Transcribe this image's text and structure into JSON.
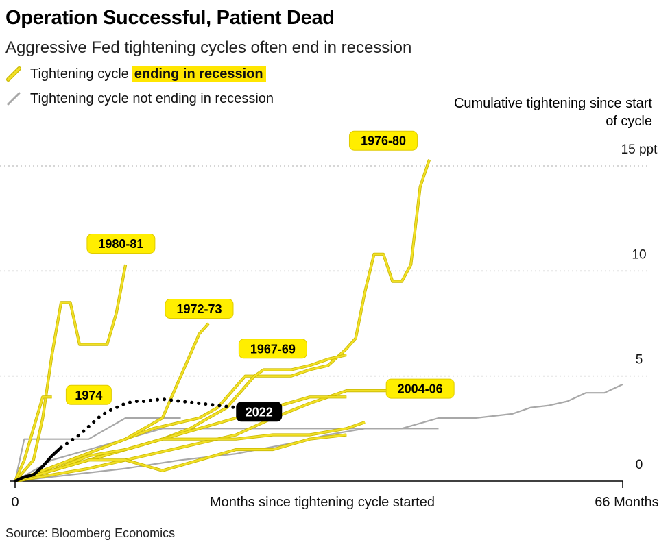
{
  "header": {
    "title": "Operation Successful, Patient Dead",
    "subtitle": "Aggressive Fed tightening cycles often end in recession"
  },
  "legend": {
    "recession_prefix": "Tightening cycle",
    "recession_highlight": "ending in recession",
    "no_recession": "Tightening cycle not ending in recession"
  },
  "footer": {
    "source": "Source: Bloomberg Economics"
  },
  "colors": {
    "recession": "#f2e026",
    "recession_outline": "#c9b800",
    "no_recession": "#a8a8a8",
    "current": "#000000",
    "label_bg": "#ffee00"
  },
  "chart_data": {
    "type": "line",
    "ylabel": "Cumulative tightening since start of cycle",
    "xlabel": "Months since tightening cycle started",
    "xlim": [
      0,
      66
    ],
    "ylim": [
      0,
      15
    ],
    "x_ticks": [
      {
        "value": 0,
        "label": "0"
      },
      {
        "value": 66,
        "label": "66 Months"
      }
    ],
    "y_ticks": [
      {
        "value": 0,
        "label": "0"
      },
      {
        "value": 5,
        "label": "5"
      },
      {
        "value": 10,
        "label": "10"
      },
      {
        "value": 15,
        "label": "15 ppt"
      }
    ],
    "grid": "horizontal-dotted",
    "series": [
      {
        "name": "1976-80",
        "recession": true,
        "label_at": [
          40,
          16.2
        ],
        "points": [
          [
            0,
            0
          ],
          [
            3,
            0.5
          ],
          [
            6,
            1
          ],
          [
            9,
            1.5
          ],
          [
            12,
            2
          ],
          [
            15,
            2.5
          ],
          [
            18,
            2.8
          ],
          [
            20,
            3
          ],
          [
            22,
            3.5
          ],
          [
            24,
            4.5
          ],
          [
            25,
            5
          ],
          [
            28,
            5
          ],
          [
            30,
            5
          ],
          [
            32,
            5.3
          ],
          [
            34,
            5.5
          ],
          [
            36,
            6.3
          ],
          [
            37,
            6.8
          ],
          [
            38,
            9
          ],
          [
            39,
            10.8
          ],
          [
            40,
            10.8
          ],
          [
            41,
            9.5
          ],
          [
            42,
            9.5
          ],
          [
            43,
            10.3
          ],
          [
            44,
            14
          ],
          [
            45,
            15.3
          ]
        ]
      },
      {
        "name": "1980-81",
        "recession": true,
        "label_at": [
          11.5,
          11.3
        ],
        "points": [
          [
            0,
            0
          ],
          [
            2,
            1
          ],
          [
            3,
            3
          ],
          [
            4,
            6
          ],
          [
            5,
            8.5
          ],
          [
            6,
            8.5
          ],
          [
            7,
            6.5
          ],
          [
            8,
            6.5
          ],
          [
            9,
            6.5
          ],
          [
            10,
            6.5
          ],
          [
            11,
            8
          ],
          [
            12,
            10.3
          ]
        ]
      },
      {
        "name": "1972-73",
        "recession": true,
        "label_at": [
          20,
          8.2
        ],
        "points": [
          [
            0,
            0
          ],
          [
            3,
            0.5
          ],
          [
            6,
            1
          ],
          [
            9,
            1.5
          ],
          [
            12,
            2
          ],
          [
            14,
            2.5
          ],
          [
            16,
            3
          ],
          [
            17,
            4
          ],
          [
            18,
            5
          ],
          [
            19,
            6
          ],
          [
            20,
            7
          ],
          [
            21,
            7.5
          ]
        ]
      },
      {
        "name": "1967-69",
        "recession": true,
        "label_at": [
          28,
          6.3
        ],
        "points": [
          [
            0,
            0
          ],
          [
            4,
            0.5
          ],
          [
            8,
            1
          ],
          [
            12,
            1.5
          ],
          [
            16,
            2
          ],
          [
            19,
            2.5
          ],
          [
            21,
            3
          ],
          [
            23,
            3.5
          ],
          [
            25,
            4.5
          ],
          [
            26,
            5
          ],
          [
            27,
            5.3
          ],
          [
            28,
            5.3
          ],
          [
            30,
            5.3
          ],
          [
            32,
            5.5
          ],
          [
            34,
            5.8
          ],
          [
            36,
            6
          ]
        ]
      },
      {
        "name": "2004-06",
        "recession": true,
        "label_at": [
          44,
          4.4
        ],
        "points": [
          [
            0,
            0
          ],
          [
            4,
            0.3
          ],
          [
            8,
            0.6
          ],
          [
            12,
            1
          ],
          [
            16,
            1.4
          ],
          [
            20,
            1.8
          ],
          [
            24,
            2.2
          ],
          [
            28,
            3
          ],
          [
            32,
            3.7
          ],
          [
            36,
            4.3
          ],
          [
            40,
            4.3
          ],
          [
            44,
            4.3
          ]
        ]
      },
      {
        "name": "1974",
        "recession": true,
        "label_at": [
          8,
          4.1
        ],
        "points": [
          [
            0,
            0
          ],
          [
            1,
            1
          ],
          [
            2,
            2.5
          ],
          [
            3,
            4
          ],
          [
            4,
            4
          ]
        ]
      },
      {
        "recession": true,
        "points": [
          [
            0,
            0
          ],
          [
            4,
            0.5
          ],
          [
            8,
            1
          ],
          [
            12,
            1.5
          ],
          [
            16,
            2
          ],
          [
            20,
            2.5
          ],
          [
            24,
            3
          ],
          [
            28,
            3.5
          ],
          [
            32,
            4
          ],
          [
            36,
            4
          ]
        ]
      },
      {
        "recession": true,
        "points": [
          [
            0,
            0
          ],
          [
            4,
            0.5
          ],
          [
            8,
            1.2
          ],
          [
            12,
            1.5
          ],
          [
            16,
            2
          ],
          [
            20,
            2
          ],
          [
            24,
            2
          ],
          [
            28,
            2.2
          ],
          [
            32,
            2.2
          ],
          [
            36,
            2.5
          ],
          [
            38,
            2.8
          ]
        ]
      },
      {
        "recession": true,
        "points": [
          [
            0,
            0
          ],
          [
            4,
            0.5
          ],
          [
            8,
            1
          ],
          [
            12,
            1
          ],
          [
            16,
            0.5
          ],
          [
            20,
            1
          ],
          [
            24,
            1.5
          ],
          [
            28,
            1.5
          ],
          [
            32,
            2
          ],
          [
            36,
            2.2
          ]
        ]
      },
      {
        "recession": false,
        "points": [
          [
            0,
            0
          ],
          [
            1,
            2
          ],
          [
            2,
            2
          ],
          [
            4,
            2
          ],
          [
            6,
            2
          ],
          [
            8,
            2
          ],
          [
            10,
            2.5
          ],
          [
            12,
            3
          ],
          [
            14,
            3
          ],
          [
            16,
            3
          ],
          [
            18,
            3
          ]
        ]
      },
      {
        "recession": false,
        "points": [
          [
            0,
            0
          ],
          [
            4,
            1
          ],
          [
            8,
            1.5
          ],
          [
            12,
            2
          ],
          [
            16,
            2.5
          ],
          [
            20,
            2.5
          ],
          [
            24,
            2.5
          ],
          [
            28,
            2.5
          ],
          [
            32,
            2.5
          ],
          [
            36,
            2.5
          ],
          [
            40,
            2.5
          ],
          [
            44,
            2.5
          ],
          [
            46,
            2.5
          ]
        ]
      },
      {
        "recession": false,
        "points": [
          [
            0,
            0
          ],
          [
            6,
            0.3
          ],
          [
            12,
            0.6
          ],
          [
            18,
            1
          ],
          [
            24,
            1.3
          ],
          [
            30,
            1.8
          ],
          [
            34,
            2.2
          ],
          [
            38,
            2.5
          ],
          [
            42,
            2.5
          ],
          [
            46,
            3
          ],
          [
            50,
            3
          ],
          [
            54,
            3.2
          ],
          [
            56,
            3.5
          ],
          [
            58,
            3.6
          ],
          [
            60,
            3.8
          ],
          [
            62,
            4.2
          ],
          [
            64,
            4.2
          ],
          [
            66,
            4.6
          ]
        ]
      },
      {
        "name": "2022",
        "current": true,
        "label_at": [
          26.5,
          3.3
        ],
        "points": [
          [
            0,
            0
          ],
          [
            1,
            0.2
          ],
          [
            2,
            0.3
          ],
          [
            3,
            0.7
          ],
          [
            4,
            1.2
          ],
          [
            5,
            1.6
          ]
        ],
        "projection": [
          [
            5,
            1.6
          ],
          [
            6,
            1.9
          ],
          [
            7,
            2.2
          ],
          [
            8,
            2.6
          ],
          [
            9,
            3
          ],
          [
            10,
            3.3
          ],
          [
            11,
            3.5
          ],
          [
            12,
            3.7
          ],
          [
            13,
            3.8
          ],
          [
            14,
            3.8
          ],
          [
            16,
            3.9
          ],
          [
            18,
            3.8
          ],
          [
            20,
            3.7
          ],
          [
            22,
            3.6
          ],
          [
            24,
            3.5
          ]
        ]
      }
    ]
  }
}
